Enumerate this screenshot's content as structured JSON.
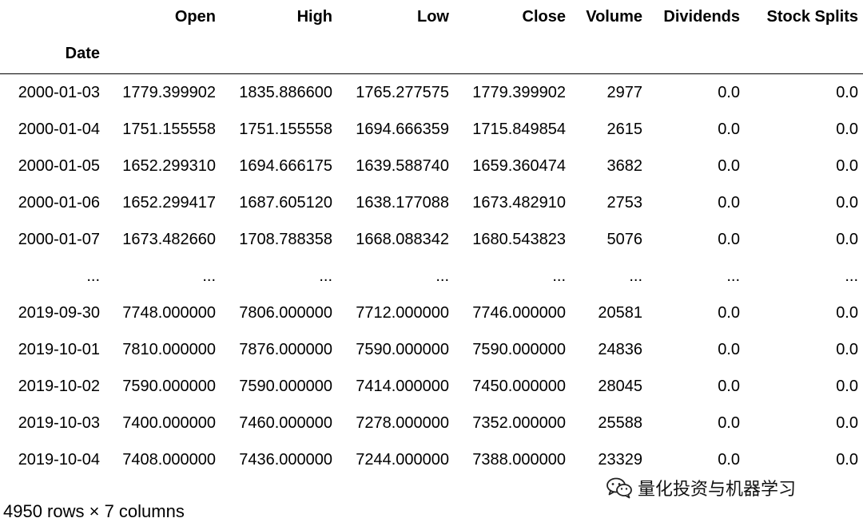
{
  "table": {
    "columns": [
      "Open",
      "High",
      "Low",
      "Close",
      "Volume",
      "Dividends",
      "Stock Splits"
    ],
    "index_name": "Date",
    "rows": [
      {
        "index": "2000-01-03",
        "cells": [
          "1779.399902",
          "1835.886600",
          "1765.277575",
          "1779.399902",
          "2977",
          "0.0",
          "0.0"
        ]
      },
      {
        "index": "2000-01-04",
        "cells": [
          "1751.155558",
          "1751.155558",
          "1694.666359",
          "1715.849854",
          "2615",
          "0.0",
          "0.0"
        ]
      },
      {
        "index": "2000-01-05",
        "cells": [
          "1652.299310",
          "1694.666175",
          "1639.588740",
          "1659.360474",
          "3682",
          "0.0",
          "0.0"
        ]
      },
      {
        "index": "2000-01-06",
        "cells": [
          "1652.299417",
          "1687.605120",
          "1638.177088",
          "1673.482910",
          "2753",
          "0.0",
          "0.0"
        ]
      },
      {
        "index": "2000-01-07",
        "cells": [
          "1673.482660",
          "1708.788358",
          "1668.088342",
          "1680.543823",
          "5076",
          "0.0",
          "0.0"
        ]
      },
      {
        "index": "...",
        "cells": [
          "...",
          "...",
          "...",
          "...",
          "...",
          "...",
          "..."
        ]
      },
      {
        "index": "2019-09-30",
        "cells": [
          "7748.000000",
          "7806.000000",
          "7712.000000",
          "7746.000000",
          "20581",
          "0.0",
          "0.0"
        ]
      },
      {
        "index": "2019-10-01",
        "cells": [
          "7810.000000",
          "7876.000000",
          "7590.000000",
          "7590.000000",
          "24836",
          "0.0",
          "0.0"
        ]
      },
      {
        "index": "2019-10-02",
        "cells": [
          "7590.000000",
          "7590.000000",
          "7414.000000",
          "7450.000000",
          "28045",
          "0.0",
          "0.0"
        ]
      },
      {
        "index": "2019-10-03",
        "cells": [
          "7400.000000",
          "7460.000000",
          "7278.000000",
          "7352.000000",
          "25588",
          "0.0",
          "0.0"
        ]
      },
      {
        "index": "2019-10-04",
        "cells": [
          "7408.000000",
          "7436.000000",
          "7244.000000",
          "7388.000000",
          "23329",
          "0.0",
          "0.0"
        ]
      }
    ]
  },
  "caption": "4950 rows × 7 columns",
  "watermark": {
    "icon": "wechat-icon",
    "text": "量化投资与机器学习"
  }
}
